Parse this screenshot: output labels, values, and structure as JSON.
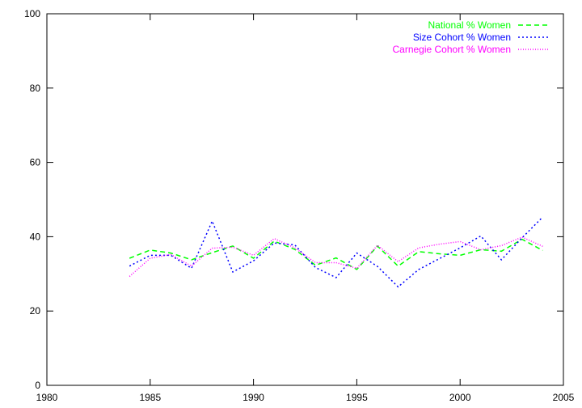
{
  "chart_data": {
    "type": "line",
    "title": "",
    "xlabel": "",
    "ylabel": "",
    "xlim": [
      1980,
      2005
    ],
    "ylim": [
      0,
      100
    ],
    "xticks": [
      1980,
      1985,
      1990,
      1995,
      2000,
      2005
    ],
    "yticks": [
      0,
      20,
      40,
      60,
      80,
      100
    ],
    "grid": false,
    "legend_position": "top-right",
    "x": [
      1984,
      1985,
      1986,
      1987,
      1988,
      1989,
      1990,
      1991,
      1992,
      1993,
      1994,
      1995,
      1996,
      1997,
      1998,
      1999,
      2000,
      2001,
      2002,
      2003,
      2004
    ],
    "series": [
      {
        "name": "National % Women",
        "color": "#00ff00",
        "dash": "6,4",
        "values": [
          34.2,
          36.4,
          35.6,
          33.8,
          35.7,
          37.5,
          34.2,
          38.8,
          36.6,
          32.3,
          34.3,
          31.2,
          37.5,
          32.1,
          36.0,
          35.4,
          35.0,
          36.5,
          36.1,
          39.3,
          36.3
        ]
      },
      {
        "name": "Size Cohort % Women",
        "color": "#0000ff",
        "dash": "2,3",
        "values": [
          32.1,
          35.0,
          35.0,
          31.5,
          44.2,
          30.5,
          33.5,
          38.3,
          37.8,
          31.7,
          29.0,
          35.6,
          32.0,
          26.5,
          31.2,
          34.1,
          37.0,
          40.2,
          33.8,
          39.7,
          45.3
        ]
      },
      {
        "name": "Carnegie Cohort % Women",
        "color": "#ff00ff",
        "dash": "1,2",
        "values": [
          29.3,
          34.2,
          35.2,
          32.1,
          36.9,
          37.2,
          35.0,
          39.5,
          37.0,
          33.0,
          33.0,
          31.5,
          37.7,
          33.3,
          37.0,
          38.0,
          38.7,
          36.5,
          37.6,
          39.9,
          37.4
        ]
      }
    ]
  }
}
